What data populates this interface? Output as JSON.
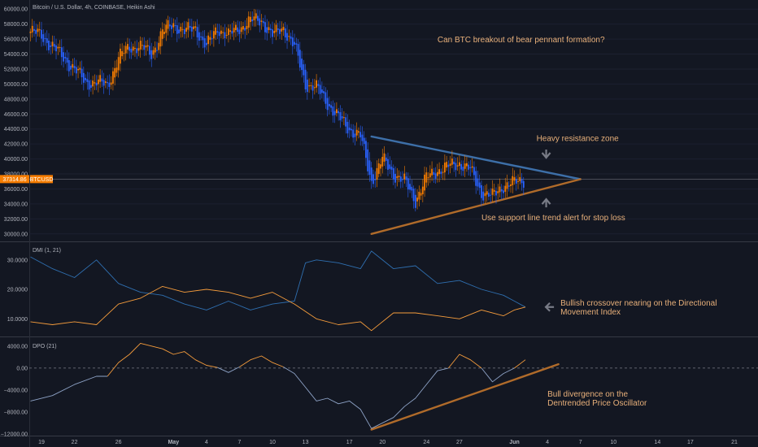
{
  "chart_data": [
    {
      "type": "candlestick",
      "title": "Bitcoin / U.S. Dollar, 4h, COINBASE, Heikin Ashi",
      "ylim": [
        29000,
        61000
      ],
      "y_ticks": [
        {
          "value": 60000,
          "label": "60000.00"
        },
        {
          "value": 58000,
          "label": "58000.00"
        },
        {
          "value": 56000,
          "label": "56000.00"
        },
        {
          "value": 54000,
          "label": "54000.00"
        },
        {
          "value": 52000,
          "label": "52000.00"
        },
        {
          "value": 50000,
          "label": "50000.00"
        },
        {
          "value": 48000,
          "label": "48000.00"
        },
        {
          "value": 46000,
          "label": "46000.00"
        },
        {
          "value": 44000,
          "label": "44000.00"
        },
        {
          "value": 42000,
          "label": "42000.00"
        },
        {
          "value": 40000,
          "label": "40000.00"
        },
        {
          "value": 38000,
          "label": "38000.00"
        },
        {
          "value": 36000,
          "label": "36000.00"
        },
        {
          "value": 34000,
          "label": "34000.00"
        },
        {
          "value": 32000,
          "label": "32000.00"
        },
        {
          "value": 30000,
          "label": "30000.00"
        }
      ],
      "current_price": {
        "value": 37314.86,
        "label": "37314.86",
        "symbol": "BTCUSD",
        "color": "#f57c00"
      },
      "colors": {
        "up": "#f57c00",
        "down": "#2962ff"
      },
      "price_path": [
        {
          "date": "2021-04-18",
          "price": 57000
        },
        {
          "date": "2021-04-19",
          "price": 56500
        },
        {
          "date": "2021-04-20",
          "price": 55000
        },
        {
          "date": "2021-04-21",
          "price": 53500
        },
        {
          "date": "2021-04-22",
          "price": 52000
        },
        {
          "date": "2021-04-23",
          "price": 50200
        },
        {
          "date": "2021-04-24",
          "price": 50300
        },
        {
          "date": "2021-04-25",
          "price": 49800
        },
        {
          "date": "2021-04-26",
          "price": 53500
        },
        {
          "date": "2021-04-27",
          "price": 55000
        },
        {
          "date": "2021-04-28",
          "price": 55000
        },
        {
          "date": "2021-04-29",
          "price": 54000
        },
        {
          "date": "2021-04-30",
          "price": 57000
        },
        {
          "date": "2021-05-01",
          "price": 58000
        },
        {
          "date": "2021-05-02",
          "price": 57000
        },
        {
          "date": "2021-05-03",
          "price": 57500
        },
        {
          "date": "2021-05-04",
          "price": 55000
        },
        {
          "date": "2021-05-05",
          "price": 57500
        },
        {
          "date": "2021-05-06",
          "price": 56500
        },
        {
          "date": "2021-05-07",
          "price": 57500
        },
        {
          "date": "2021-05-08",
          "price": 58500
        },
        {
          "date": "2021-05-09",
          "price": 58500
        },
        {
          "date": "2021-05-10",
          "price": 56500
        },
        {
          "date": "2021-05-11",
          "price": 57500
        },
        {
          "date": "2021-05-12",
          "price": 55000
        },
        {
          "date": "2021-05-13",
          "price": 50000
        },
        {
          "date": "2021-05-14",
          "price": 49500
        },
        {
          "date": "2021-05-15",
          "price": 47500
        },
        {
          "date": "2021-05-16",
          "price": 45500
        },
        {
          "date": "2021-05-17",
          "price": 44000
        },
        {
          "date": "2021-05-18",
          "price": 43000
        },
        {
          "date": "2021-05-19",
          "price": 37000
        },
        {
          "date": "2021-05-20",
          "price": 40000
        },
        {
          "date": "2021-05-21",
          "price": 38000
        },
        {
          "date": "2021-05-22",
          "price": 37000
        },
        {
          "date": "2021-05-23",
          "price": 34500
        },
        {
          "date": "2021-05-24",
          "price": 37500
        },
        {
          "date": "2021-05-25",
          "price": 38500
        },
        {
          "date": "2021-05-26",
          "price": 39000
        },
        {
          "date": "2021-05-27",
          "price": 39500
        },
        {
          "date": "2021-05-28",
          "price": 38500
        },
        {
          "date": "2021-05-29",
          "price": 35500
        },
        {
          "date": "2021-05-30",
          "price": 35000
        },
        {
          "date": "2021-05-31",
          "price": 36500
        },
        {
          "date": "2021-06-01",
          "price": 36800
        },
        {
          "date": "2021-06-02",
          "price": 37300
        }
      ],
      "trendlines": [
        {
          "name": "resistance",
          "color": "#3d6fa8",
          "points": [
            {
              "date": "2021-05-19",
              "price": 43000
            },
            {
              "date": "2021-06-07",
              "price": 37300
            }
          ]
        },
        {
          "name": "support",
          "color": "#b06b2a",
          "points": [
            {
              "date": "2021-05-19",
              "price": 30000
            },
            {
              "date": "2021-06-07",
              "price": 37300
            }
          ]
        }
      ],
      "annotations": [
        {
          "text": "Can BTC breakout of bear pennant formation?",
          "date": "2021-05-25",
          "price": 55600
        },
        {
          "text": "Heavy resistance zone",
          "date": "2021-06-03",
          "price": 42400
        },
        {
          "text": "Use support line trend alert for stop loss",
          "date": "2021-05-29",
          "price": 31800
        }
      ],
      "arrows": [
        {
          "direction": "down",
          "date": "2021-06-03",
          "price": 40500
        },
        {
          "direction": "up",
          "date": "2021-06-03",
          "price": 34300
        }
      ]
    },
    {
      "type": "line",
      "title": "DMI (1, 21)",
      "ylim": [
        4,
        36
      ],
      "y_ticks": [
        {
          "value": 30,
          "label": "30.0000"
        },
        {
          "value": 20,
          "label": "20.0000"
        },
        {
          "value": 10,
          "label": "10.0000"
        }
      ],
      "series": [
        {
          "color": "#2f6fb0",
          "points": [
            {
              "date": "2021-04-18",
              "value": 31
            },
            {
              "date": "2021-04-20",
              "value": 27
            },
            {
              "date": "2021-04-22",
              "value": 24
            },
            {
              "date": "2021-04-24",
              "value": 30
            },
            {
              "date": "2021-04-26",
              "value": 22
            },
            {
              "date": "2021-04-28",
              "value": 19
            },
            {
              "date": "2021-04-30",
              "value": 18
            },
            {
              "date": "2021-05-02",
              "value": 15
            },
            {
              "date": "2021-05-04",
              "value": 13
            },
            {
              "date": "2021-05-06",
              "value": 16
            },
            {
              "date": "2021-05-08",
              "value": 13
            },
            {
              "date": "2021-05-10",
              "value": 15
            },
            {
              "date": "2021-05-12",
              "value": 16
            },
            {
              "date": "2021-05-13",
              "value": 29
            },
            {
              "date": "2021-05-14",
              "value": 30
            },
            {
              "date": "2021-05-16",
              "value": 29
            },
            {
              "date": "2021-05-18",
              "value": 27
            },
            {
              "date": "2021-05-19",
              "value": 33
            },
            {
              "date": "2021-05-21",
              "value": 27
            },
            {
              "date": "2021-05-23",
              "value": 28
            },
            {
              "date": "2021-05-25",
              "value": 22
            },
            {
              "date": "2021-05-27",
              "value": 23
            },
            {
              "date": "2021-05-29",
              "value": 20
            },
            {
              "date": "2021-05-31",
              "value": 18
            },
            {
              "date": "2021-06-01",
              "value": 16
            },
            {
              "date": "2021-06-02",
              "value": 14
            }
          ]
        },
        {
          "color": "#f59c3c",
          "points": [
            {
              "date": "2021-04-18",
              "value": 9
            },
            {
              "date": "2021-04-20",
              "value": 8
            },
            {
              "date": "2021-04-22",
              "value": 9
            },
            {
              "date": "2021-04-24",
              "value": 8
            },
            {
              "date": "2021-04-26",
              "value": 15
            },
            {
              "date": "2021-04-28",
              "value": 17
            },
            {
              "date": "2021-04-30",
              "value": 21
            },
            {
              "date": "2021-05-02",
              "value": 19
            },
            {
              "date": "2021-05-04",
              "value": 20
            },
            {
              "date": "2021-05-06",
              "value": 19
            },
            {
              "date": "2021-05-08",
              "value": 17
            },
            {
              "date": "2021-05-10",
              "value": 19
            },
            {
              "date": "2021-05-12",
              "value": 15
            },
            {
              "date": "2021-05-14",
              "value": 10
            },
            {
              "date": "2021-05-16",
              "value": 8
            },
            {
              "date": "2021-05-18",
              "value": 9
            },
            {
              "date": "2021-05-19",
              "value": 6
            },
            {
              "date": "2021-05-21",
              "value": 12
            },
            {
              "date": "2021-05-23",
              "value": 12
            },
            {
              "date": "2021-05-25",
              "value": 11
            },
            {
              "date": "2021-05-27",
              "value": 10
            },
            {
              "date": "2021-05-29",
              "value": 13
            },
            {
              "date": "2021-05-31",
              "value": 11
            },
            {
              "date": "2021-06-01",
              "value": 13
            },
            {
              "date": "2021-06-02",
              "value": 14
            }
          ]
        }
      ],
      "annotation": {
        "lines": [
          "Bullish crossover nearing on the Directional",
          "Movement Index"
        ],
        "date": "2021-06-04",
        "value": 14
      }
    },
    {
      "type": "line",
      "title": "DPO (21)",
      "ylim": [
        -12300,
        5600
      ],
      "y_ticks": [
        {
          "value": 4000,
          "label": "4000.00"
        },
        {
          "value": 0,
          "label": "0.00"
        },
        {
          "value": -4000,
          "label": "−4000.00"
        },
        {
          "value": -8000,
          "label": "−8000.00"
        },
        {
          "value": -12000,
          "label": "−12000.00"
        }
      ],
      "zero_line": 0,
      "series": [
        {
          "color": "#8fa4c8",
          "points": [
            {
              "date": "2021-04-18",
              "value": -6000
            },
            {
              "date": "2021-04-20",
              "value": -5000
            },
            {
              "date": "2021-04-22",
              "value": -3000
            },
            {
              "date": "2021-04-24",
              "value": -1500
            },
            {
              "date": "2021-04-25",
              "value": -1500
            }
          ]
        },
        {
          "color": "#f59c3c",
          "points": [
            {
              "date": "2021-04-25",
              "value": -1500
            },
            {
              "date": "2021-04-26",
              "value": 1000
            },
            {
              "date": "2021-04-27",
              "value": 2500
            },
            {
              "date": "2021-04-28",
              "value": 4500
            },
            {
              "date": "2021-04-30",
              "value": 3500
            },
            {
              "date": "2021-05-01",
              "value": 2500
            },
            {
              "date": "2021-05-02",
              "value": 3000
            },
            {
              "date": "2021-05-03",
              "value": 1500
            },
            {
              "date": "2021-05-04",
              "value": 500
            },
            {
              "date": "2021-05-05",
              "value": 100
            }
          ]
        },
        {
          "color": "#8fa4c8",
          "points": [
            {
              "date": "2021-05-05",
              "value": 100
            },
            {
              "date": "2021-05-06",
              "value": -800
            },
            {
              "date": "2021-05-07",
              "value": 200
            }
          ]
        },
        {
          "color": "#f59c3c",
          "points": [
            {
              "date": "2021-05-07",
              "value": 200
            },
            {
              "date": "2021-05-08",
              "value": 1500
            },
            {
              "date": "2021-05-09",
              "value": 2200
            },
            {
              "date": "2021-05-10",
              "value": 1000
            },
            {
              "date": "2021-05-11",
              "value": 200
            }
          ]
        },
        {
          "color": "#8fa4c8",
          "points": [
            {
              "date": "2021-05-11",
              "value": 200
            },
            {
              "date": "2021-05-12",
              "value": -1000
            },
            {
              "date": "2021-05-13",
              "value": -3500
            },
            {
              "date": "2021-05-14",
              "value": -6000
            },
            {
              "date": "2021-05-15",
              "value": -5500
            },
            {
              "date": "2021-05-16",
              "value": -6500
            },
            {
              "date": "2021-05-17",
              "value": -6000
            },
            {
              "date": "2021-05-18",
              "value": -7500
            },
            {
              "date": "2021-05-19",
              "value": -11000
            },
            {
              "date": "2021-05-21",
              "value": -9000
            },
            {
              "date": "2021-05-22",
              "value": -7000
            },
            {
              "date": "2021-05-23",
              "value": -5500
            },
            {
              "date": "2021-05-24",
              "value": -3000
            },
            {
              "date": "2021-05-25",
              "value": -500
            },
            {
              "date": "2021-05-26",
              "value": 0
            }
          ]
        },
        {
          "color": "#f59c3c",
          "points": [
            {
              "date": "2021-05-26",
              "value": 0
            },
            {
              "date": "2021-05-27",
              "value": 2500
            },
            {
              "date": "2021-05-28",
              "value": 1500
            },
            {
              "date": "2021-05-29",
              "value": 0
            }
          ]
        },
        {
          "color": "#8fa4c8",
          "points": [
            {
              "date": "2021-05-29",
              "value": 0
            },
            {
              "date": "2021-05-30",
              "value": -2500
            },
            {
              "date": "2021-05-31",
              "value": -1000
            },
            {
              "date": "2021-06-01",
              "value": 0
            }
          ]
        },
        {
          "color": "#f59c3c",
          "points": [
            {
              "date": "2021-06-01",
              "value": 0
            },
            {
              "date": "2021-06-02",
              "value": 1500
            }
          ]
        }
      ],
      "trendline": {
        "color": "#b06b2a",
        "points": [
          {
            "date": "2021-05-19",
            "value": -11200
          },
          {
            "date": "2021-06-05",
            "value": 700
          }
        ]
      },
      "annotation": {
        "lines": [
          "Bull divergence on the",
          "Dentrended Price Oscillator"
        ],
        "date": "2021-06-04",
        "value": -5200
      }
    }
  ],
  "x_axis": {
    "ticks": [
      {
        "date": "2021-04-19",
        "label": "19",
        "bold": false
      },
      {
        "date": "2021-04-22",
        "label": "22",
        "bold": false
      },
      {
        "date": "2021-04-26",
        "label": "26",
        "bold": false
      },
      {
        "date": "2021-05-01",
        "label": "May",
        "bold": true
      },
      {
        "date": "2021-05-04",
        "label": "4",
        "bold": false
      },
      {
        "date": "2021-05-07",
        "label": "7",
        "bold": false
      },
      {
        "date": "2021-05-10",
        "label": "10",
        "bold": false
      },
      {
        "date": "2021-05-13",
        "label": "13",
        "bold": false
      },
      {
        "date": "2021-05-17",
        "label": "17",
        "bold": false
      },
      {
        "date": "2021-05-20",
        "label": "20",
        "bold": false
      },
      {
        "date": "2021-05-24",
        "label": "24",
        "bold": false
      },
      {
        "date": "2021-05-27",
        "label": "27",
        "bold": false
      },
      {
        "date": "2021-06-01",
        "label": "Jun",
        "bold": true
      },
      {
        "date": "2021-06-04",
        "label": "4",
        "bold": false
      },
      {
        "date": "2021-06-07",
        "label": "7",
        "bold": false
      },
      {
        "date": "2021-06-10",
        "label": "10",
        "bold": false
      },
      {
        "date": "2021-06-14",
        "label": "14",
        "bold": false
      },
      {
        "date": "2021-06-17",
        "label": "17",
        "bold": false
      },
      {
        "date": "2021-06-21",
        "label": "21",
        "bold": false
      }
    ]
  }
}
